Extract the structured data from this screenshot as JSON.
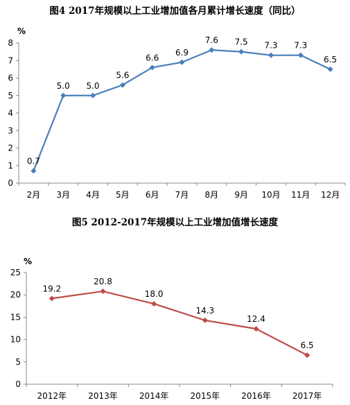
{
  "chart_data": [
    {
      "type": "line",
      "title": "图4   2017年规模以上工业增加值各月累计增长速度（同比）",
      "ylabel": "%",
      "categories": [
        "2月",
        "3月",
        "4月",
        "5月",
        "6月",
        "7月",
        "8月",
        "9月",
        "10月",
        "11月",
        "12月"
      ],
      "values": [
        0.7,
        5.0,
        5.0,
        5.6,
        6.6,
        6.9,
        7.6,
        7.5,
        7.3,
        7.3,
        6.5
      ],
      "labels": [
        "0.7",
        "5.0",
        "5.0",
        "5.6",
        "6.6",
        "6.9",
        "7.6",
        "7.5",
        "7.3",
        "7.3",
        "6.5"
      ],
      "ylim": [
        0,
        8
      ],
      "yticks": [
        0,
        1,
        2,
        3,
        4,
        5,
        6,
        7,
        8
      ],
      "color": "#4a7ebb",
      "marker": "diamond",
      "grid": false,
      "legend": "none"
    },
    {
      "type": "line",
      "title": "图5   2012-2017年规模以上工业增加值增长速度",
      "ylabel": "%",
      "categories": [
        "2012年",
        "2013年",
        "2014年",
        "2015年",
        "2016年",
        "2017年"
      ],
      "values": [
        19.2,
        20.8,
        18.0,
        14.3,
        12.4,
        6.5
      ],
      "labels": [
        "19.2",
        "20.8",
        "18.0",
        "14.3",
        "12.4",
        "6.5"
      ],
      "ylim": [
        0,
        25
      ],
      "yticks": [
        0,
        5,
        10,
        15,
        20,
        25
      ],
      "color": "#be4b48",
      "marker": "diamond",
      "grid": false,
      "legend": "none"
    }
  ]
}
